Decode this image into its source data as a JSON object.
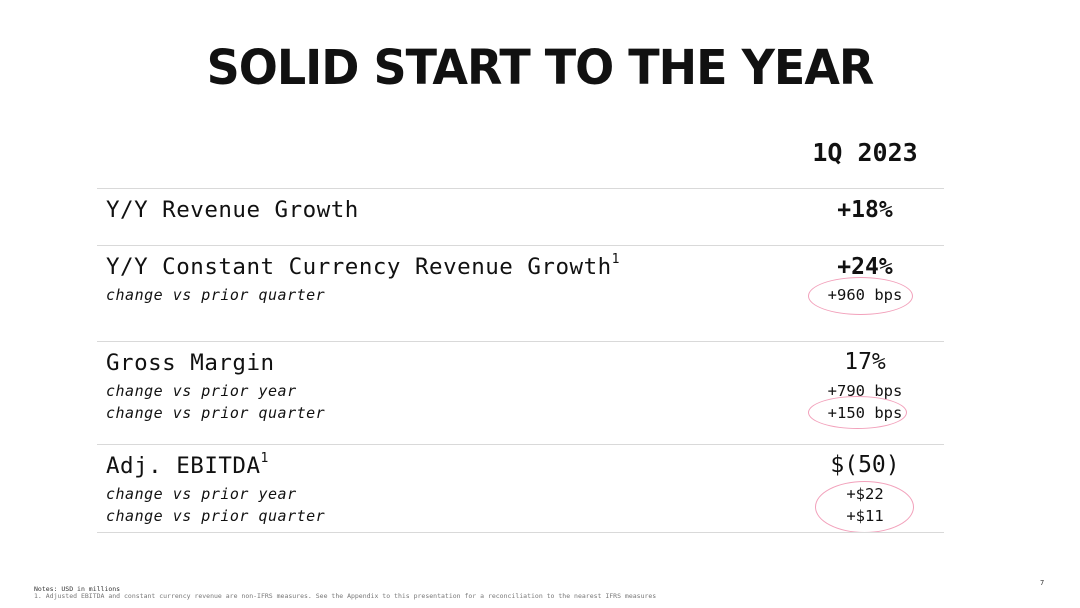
{
  "title": "SOLID START TO THE YEAR",
  "column_header": "1Q 2023",
  "rows": [
    {
      "label": "Y/Y Revenue Growth",
      "value": "+18%"
    },
    {
      "label": "Y/Y Constant Currency Revenue Growth",
      "footnote": "1",
      "value": "+24%",
      "subs": [
        {
          "label": "change vs prior quarter",
          "value": "+960 bps"
        }
      ]
    },
    {
      "label": "Gross Margin",
      "value": "17%",
      "subs": [
        {
          "label": "change vs prior year",
          "value": "+790 bps"
        },
        {
          "label": "change vs prior quarter",
          "value": "+150 bps"
        }
      ]
    },
    {
      "label": "Adj. EBITDA",
      "footnote": "1",
      "value": "$(50)",
      "subs": [
        {
          "label": "change vs prior year",
          "value": "+$22"
        },
        {
          "label": "change vs prior quarter",
          "value": "+$11"
        }
      ]
    }
  ],
  "notes": {
    "line1": "Notes: USD in millions",
    "line2": "1. Adjusted EBITDA and constant currency revenue are non-IFRS measures. See the Appendix to this presentation for a reconciliation to the nearest IFRS measures"
  },
  "page_number": "7",
  "colors": {
    "highlight_circle": "#f2a1bb",
    "divider": "#d9d9d9",
    "text": "#111111"
  }
}
